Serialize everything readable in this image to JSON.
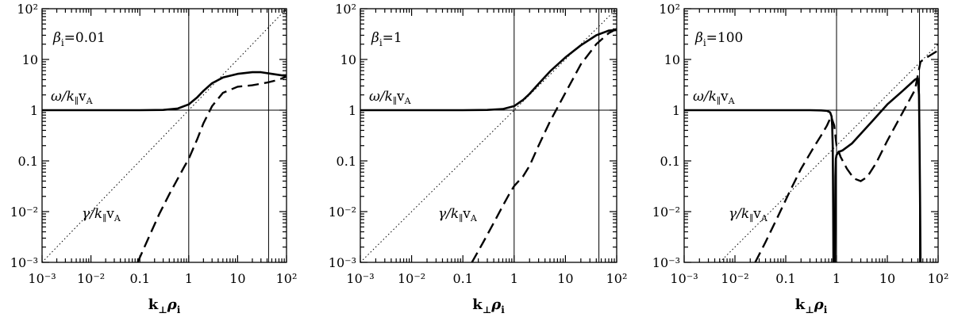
{
  "chart_data": [
    {
      "type": "line",
      "beta_label": "β",
      "beta_subscript": "i",
      "beta_value": "=0.01",
      "omega_label": {
        "symbol": "ω/k",
        "sub": "∥",
        "rest": "v",
        "sub2": "A"
      },
      "gamma_label": {
        "symbol": "γ/k",
        "sub": "∥",
        "rest": "v",
        "sub2": "A"
      },
      "xlabel": {
        "main": "k",
        "sub": "⊥",
        "main2": "ρ",
        "sub2": "i"
      },
      "x_scale": "log",
      "y_scale": "log",
      "xlim": [
        0.001,
        100
      ],
      "ylim": [
        0.001,
        100
      ],
      "x_ticks": [
        "10⁻³",
        "10⁻²",
        "0.1",
        "1",
        "10",
        "10²"
      ],
      "y_ticks": [
        "10⁻³",
        "10⁻²",
        "0.1",
        "1",
        "10",
        "10²"
      ],
      "vertical_lines": [
        1,
        43
      ],
      "horizontal_lines": [
        1
      ],
      "series": [
        {
          "style": "solid",
          "x": [
            0.001,
            0.1,
            0.3,
            0.6,
            1,
            1.5,
            2,
            3,
            5,
            10,
            20,
            30,
            50,
            100
          ],
          "y": [
            1,
            1,
            1.01,
            1.08,
            1.3,
            1.8,
            2.4,
            3.4,
            4.4,
            5.2,
            5.6,
            5.6,
            5.2,
            4.7
          ]
        },
        {
          "style": "dashed",
          "x": [
            0.09,
            0.15,
            0.25,
            0.4,
            0.6,
            0.8,
            1,
            1.5,
            2,
            3,
            5,
            10,
            20,
            40,
            70,
            100
          ],
          "y": [
            0.001,
            0.003,
            0.009,
            0.022,
            0.045,
            0.075,
            0.11,
            0.27,
            0.55,
            1.2,
            2.2,
            2.9,
            3.1,
            3.5,
            4.0,
            4.6
          ]
        },
        {
          "style": "dotted",
          "x": [
            0.001,
            100
          ],
          "y": [
            0.001,
            100
          ]
        }
      ]
    },
    {
      "type": "line",
      "beta_label": "β",
      "beta_subscript": "i",
      "beta_value": "=1",
      "omega_label": {
        "symbol": "ω/k",
        "sub": "∥",
        "rest": "v",
        "sub2": "A"
      },
      "gamma_label": {
        "symbol": "γ/k",
        "sub": "∥",
        "rest": "v",
        "sub2": "A"
      },
      "xlabel": {
        "main": "k",
        "sub": "⊥",
        "main2": "ρ",
        "sub2": "i"
      },
      "x_scale": "log",
      "y_scale": "log",
      "xlim": [
        0.001,
        100
      ],
      "ylim": [
        0.001,
        100
      ],
      "x_ticks": [
        "10⁻³",
        "10⁻²",
        "0.1",
        "1",
        "10",
        "10²"
      ],
      "y_ticks": [
        "10⁻³",
        "10⁻²",
        "0.1",
        "1",
        "10",
        "10²"
      ],
      "vertical_lines": [
        1,
        45
      ],
      "horizontal_lines": [
        1
      ],
      "series": [
        {
          "style": "solid",
          "x": [
            0.001,
            0.1,
            0.3,
            0.6,
            1,
            1.5,
            2,
            3,
            5,
            10,
            20,
            40,
            70,
            100
          ],
          "y": [
            1,
            1,
            1.01,
            1.05,
            1.2,
            1.6,
            2.1,
            3.3,
            5.8,
            11,
            19,
            30,
            37,
            38
          ]
        },
        {
          "style": "dashed",
          "x": [
            0.15,
            0.25,
            0.4,
            0.6,
            0.8,
            1,
            1.5,
            2,
            3,
            5,
            10,
            20,
            40,
            70,
            100
          ],
          "y": [
            0.001,
            0.0025,
            0.006,
            0.013,
            0.022,
            0.032,
            0.05,
            0.08,
            0.2,
            0.6,
            2.2,
            8,
            20,
            33,
            40
          ]
        },
        {
          "style": "dotted",
          "x": [
            0.001,
            100
          ],
          "y": [
            0.001,
            100
          ]
        }
      ]
    },
    {
      "type": "line",
      "beta_label": "β",
      "beta_subscript": "i",
      "beta_value": "=100",
      "omega_label": {
        "symbol": "ω/k",
        "sub": "∥",
        "rest": "v",
        "sub2": "A"
      },
      "gamma_label": {
        "symbol": "γ/k",
        "sub": "∥",
        "rest": "v",
        "sub2": "A"
      },
      "xlabel": {
        "main": "k",
        "sub": "⊥",
        "main2": "ρ",
        "sub2": "i"
      },
      "x_scale": "log",
      "y_scale": "log",
      "xlim": [
        0.001,
        100
      ],
      "ylim": [
        0.001,
        100
      ],
      "x_ticks": [
        "10⁻³",
        "10⁻²",
        "0.1",
        "1",
        "10",
        "10²"
      ],
      "y_ticks": [
        "10⁻³",
        "10⁻²",
        "0.1",
        "1",
        "10",
        "10²"
      ],
      "vertical_lines": [
        1,
        43
      ],
      "horizontal_lines": [
        1
      ],
      "series": [
        {
          "style": "solid",
          "x": [
            0.001,
            0.1,
            0.3,
            0.5,
            0.65,
            0.75,
            0.8,
            0.82,
            0.84,
            0.85,
            0.86,
            0.87
          ],
          "y": [
            1,
            1,
            1,
            0.99,
            0.97,
            0.9,
            0.75,
            0.5,
            0.2,
            0.05,
            0.01,
            0.001
          ]
        },
        {
          "style": "solid",
          "x": [
            0.93,
            0.94,
            0.95,
            0.97,
            1.0,
            1.1,
            1.3,
            2,
            5,
            10,
            20,
            35,
            40,
            42,
            43,
            44,
            45
          ],
          "y": [
            0.001,
            0.01,
            0.05,
            0.11,
            0.13,
            0.15,
            0.16,
            0.22,
            0.6,
            1.3,
            2.4,
            4,
            4.3,
            2,
            0.3,
            0.02,
            0.001
          ]
        },
        {
          "style": "dashed",
          "x": [
            0.025,
            0.04,
            0.07,
            0.12,
            0.2,
            0.35,
            0.5,
            0.65,
            0.78,
            0.9,
            1.0,
            1.2,
            1.6,
            2.2,
            3,
            4,
            6,
            10,
            20,
            35,
            45,
            60,
            100
          ],
          "y": [
            0.001,
            0.0025,
            0.008,
            0.025,
            0.07,
            0.18,
            0.32,
            0.5,
            0.75,
            0.5,
            0.2,
            0.12,
            0.07,
            0.045,
            0.04,
            0.048,
            0.09,
            0.25,
            0.9,
            2.5,
            9,
            11,
            15
          ]
        },
        {
          "style": "dotted",
          "x": [
            0.005,
            100
          ],
          "y": [
            0.001,
            20
          ]
        }
      ]
    }
  ]
}
